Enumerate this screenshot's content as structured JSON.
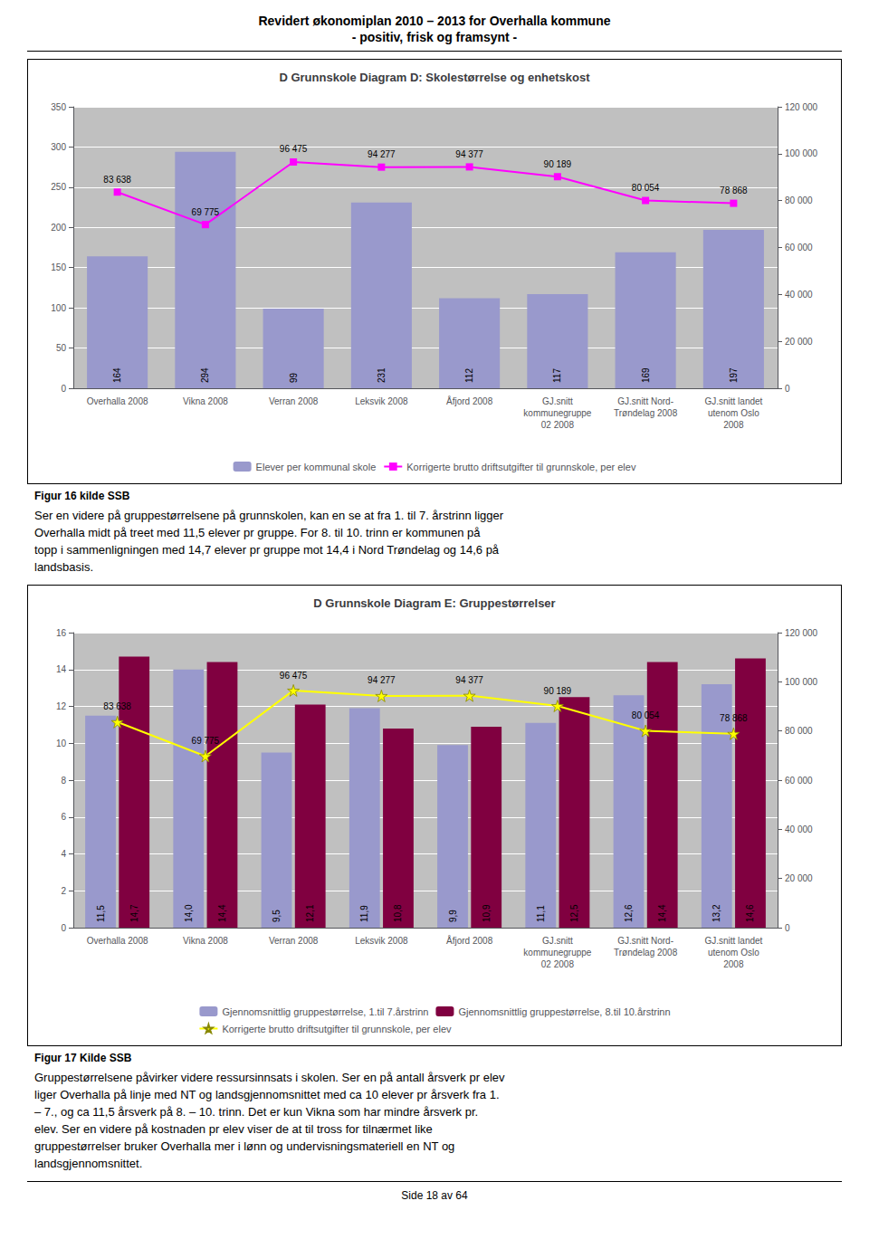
{
  "title": "Revidert økonomiplan 2010 – 2013 for Overhalla kommune",
  "subtitle": "- positiv, frisk og framsynt -",
  "annotations": [
    "Side 18 av 64"
  ],
  "chart_data": [
    {
      "type": "bar",
      "title": "D Grunnskole Diagram D: Skolestørrelse og enhetskost",
      "categories": [
        "Overhalla 2008",
        "Vikna 2008",
        "Verran 2008",
        "Leksvik 2008",
        "Åfjord 2008",
        "GJ.snitt\nkommunegruppe\n02 2008",
        "GJ.snitt Nord-\nTrøndelag 2008",
        "GJ.snitt landet\nutenom Oslo\n2008"
      ],
      "series": [
        {
          "name": "Elever per kommunal skole",
          "type": "bar",
          "color": "#9999CC",
          "values": [
            164,
            294,
            99,
            231,
            112,
            117,
            169,
            197
          ],
          "data_labels": true
        },
        {
          "name": "Korrigerte brutto driftsutgifter til grunnskole, per elev",
          "type": "line",
          "axis": "y2",
          "color": "#FF00FF",
          "marker": "square",
          "values": [
            83638,
            69775,
            96475,
            94277,
            94377,
            90189,
            80054,
            78868
          ],
          "value_labels": [
            "83 638",
            "69 775",
            "96 475",
            "94 277",
            "94 377",
            "90 189",
            "80 054",
            "78 868"
          ],
          "data_labels": true
        }
      ],
      "ylim": [
        0,
        350
      ],
      "yticks": [
        0,
        50,
        100,
        150,
        200,
        250,
        300,
        350
      ],
      "y2lim": [
        0,
        120000
      ],
      "y2ticks": [
        0,
        {
          "value": 20000,
          "label": "20 000"
        },
        {
          "value": 40000,
          "label": "40 000"
        },
        {
          "value": 60000,
          "label": "60 000"
        },
        {
          "value": 80000,
          "label": "80 000"
        },
        {
          "value": 100000,
          "label": "100 000"
        },
        {
          "value": 120000,
          "label": "120 000"
        }
      ],
      "grid": true,
      "legend": "bottom",
      "annotations": [
        "Figur 16 kilde SSB",
        "Ser en videre på gruppestørrelsene på grunnskolen, kan en se at fra 1. til 7. årstrinn ligger\nOverhalla midt på treet med 11,5 elever pr gruppe. For 8. til 10. trinn er kommunen på\ntopp i sammenligningen med 14,7 elever pr gruppe mot 14,4 i Nord Trøndelag og 14,6 på\nlandsbasis."
      ]
    },
    {
      "type": "bar",
      "title": "D Grunnskole Diagram E: Gruppestørrelser",
      "categories": [
        "Overhalla 2008",
        "Vikna 2008",
        "Verran 2008",
        "Leksvik 2008",
        "Åfjord 2008",
        "GJ.snitt\nkommunegruppe\n02 2008",
        "GJ.snitt Nord-\nTrøndelag 2008",
        "GJ.snitt landet\nutenom Oslo\n2008"
      ],
      "series": [
        {
          "name": "Gjennomsnittlig gruppestørrelse, 1.til 7.årstrinn",
          "type": "bar",
          "color": "#9999CC",
          "values": [
            11.5,
            14.0,
            9.5,
            11.9,
            9.9,
            11.1,
            12.6,
            13.2
          ],
          "value_labels": [
            "11,5",
            "14,0",
            "9,5",
            "11,9",
            "9,9",
            "11,1",
            "12,6",
            "13,2"
          ],
          "data_labels": true
        },
        {
          "name": "Gjennomsnittlig gruppestørrelse, 8.til 10.årstrinn",
          "type": "bar",
          "color": "#800040",
          "values": [
            14.7,
            14.4,
            12.1,
            10.8,
            10.9,
            12.5,
            14.4,
            14.6
          ],
          "value_labels": [
            "14,7",
            "14,4",
            "12,1",
            "10,8",
            "10,9",
            "12,5",
            "14,4",
            "14,6"
          ],
          "data_labels": true
        },
        {
          "name": "Korrigerte brutto driftsutgifter til grunnskole, per elev",
          "type": "line",
          "axis": "y2",
          "color": "#FFFF00",
          "marker": "star",
          "values": [
            83638,
            69775,
            96475,
            94277,
            94377,
            90189,
            80054,
            78868
          ],
          "value_labels": [
            "83 638",
            "69 775",
            "96 475",
            "94 277",
            "94 377",
            "90 189",
            "80 054",
            "78 868"
          ],
          "data_labels": true
        }
      ],
      "ylim": [
        0,
        16
      ],
      "yticks": [
        0,
        2,
        4,
        6,
        8,
        10,
        12,
        14,
        16
      ],
      "y2lim": [
        0,
        120000
      ],
      "y2ticks": [
        0,
        {
          "value": 20000,
          "label": "20 000"
        },
        {
          "value": 40000,
          "label": "40 000"
        },
        {
          "value": 60000,
          "label": "60 000"
        },
        {
          "value": 80000,
          "label": "80 000"
        },
        {
          "value": 100000,
          "label": "100 000"
        },
        {
          "value": 120000,
          "label": "120 000"
        }
      ],
      "grid": true,
      "legend": "bottom",
      "annotations": [
        "Figur 17 Kilde SSB",
        "Gruppestørrelsene påvirker videre ressursinnsats i skolen. Ser en på antall årsverk pr elev\nliger Overhalla på linje med NT og landsgjennomsnittet med ca 10 elever pr årsverk fra 1.\n– 7., og ca 11,5 årsverk på 8. – 10. trinn.  Det er kun Vikna som har mindre årsverk pr.\nelev. Ser en videre på kostnaden pr elev viser de at til tross for tilnærmet like\ngruppestørrelser bruker Overhalla mer i lønn og undervisningsmateriell en NT og\nlandsgjennomsnittet."
      ]
    }
  ]
}
